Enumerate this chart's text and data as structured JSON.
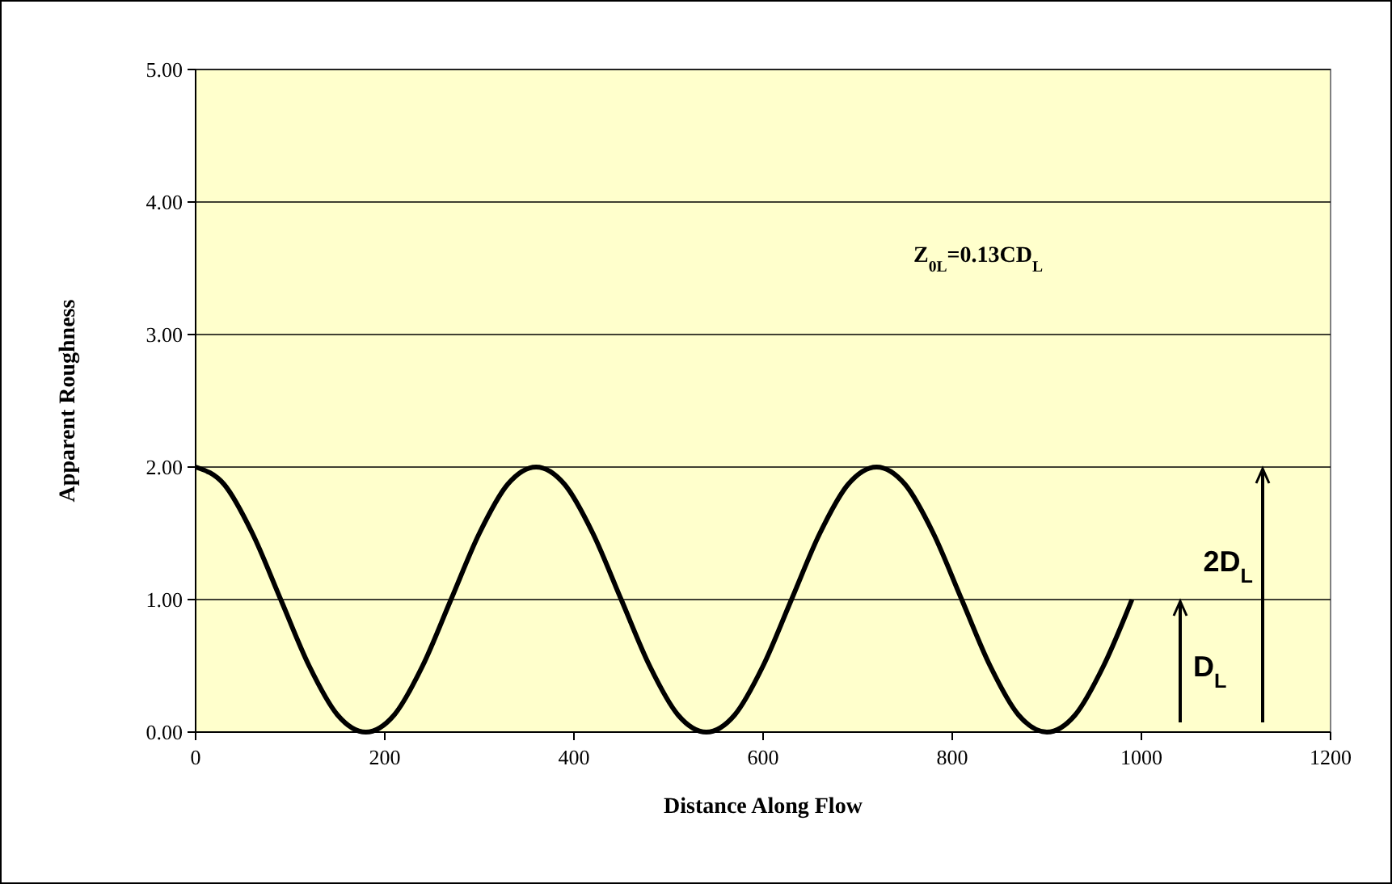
{
  "chart_data": {
    "type": "line",
    "xlabel": "Distance Along Flow",
    "ylabel": "Apparent Roughness",
    "x": [
      0,
      30,
      60,
      90,
      120,
      150,
      180,
      210,
      240,
      270,
      300,
      330,
      360,
      390,
      420,
      450,
      480,
      510,
      540,
      570,
      600,
      630,
      660,
      690,
      720,
      750,
      780,
      810,
      840,
      870,
      900,
      930,
      960,
      990
    ],
    "series": [
      {
        "color": "#000000",
        "values": [
          2,
          1.87,
          1.5,
          1,
          0.5,
          0.13,
          0,
          0.13,
          0.5,
          1,
          1.5,
          1.87,
          2,
          1.87,
          1.5,
          1,
          0.5,
          0.13,
          0,
          0.13,
          0.5,
          1,
          1.5,
          1.87,
          2,
          1.87,
          1.5,
          1,
          0.5,
          0.13,
          0,
          0.13,
          0.5,
          1
        ]
      }
    ],
    "xlim": [
      0,
      1200
    ],
    "xticks": [
      0,
      200,
      400,
      600,
      800,
      1000,
      1200
    ],
    "ylim": [
      0,
      5
    ],
    "yticks": [
      {
        "value": 0,
        "label": "0.00"
      },
      {
        "value": 1,
        "label": "1.00"
      },
      {
        "value": 2,
        "label": "2.00"
      },
      {
        "value": 3,
        "label": "3.00"
      },
      {
        "value": 4,
        "label": "4.00"
      },
      {
        "value": 5,
        "label": "5.00"
      }
    ],
    "grid": "y",
    "marker": "none",
    "line_style": "solid",
    "annotations": [
      "Z$_{0L}$=0.13CD$_{L}$",
      "D$_{L}$",
      "2D$_{L}$"
    ]
  }
}
